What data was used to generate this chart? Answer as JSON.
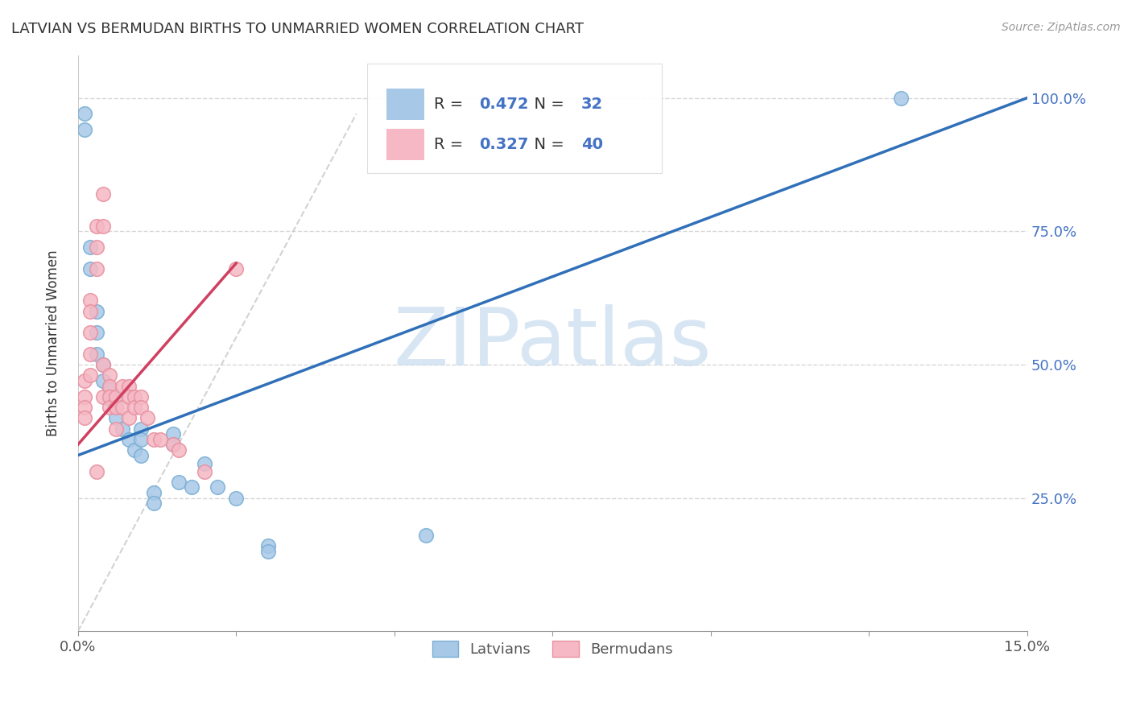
{
  "title": "LATVIAN VS BERMUDAN BIRTHS TO UNMARRIED WOMEN CORRELATION CHART",
  "source": "Source: ZipAtlas.com",
  "ylabel": "Births to Unmarried Women",
  "xlim": [
    0.0,
    0.15
  ],
  "ylim": [
    0.0,
    1.08
  ],
  "xticks": [
    0.0,
    0.025,
    0.05,
    0.075,
    0.1,
    0.125,
    0.15
  ],
  "xticklabels": [
    "0.0%",
    "",
    "",
    "",
    "",
    "",
    "15.0%"
  ],
  "yticks": [
    0.0,
    0.25,
    0.5,
    0.75,
    1.0
  ],
  "yticklabels_right": [
    "",
    "25.0%",
    "50.0%",
    "75.0%",
    "100.0%"
  ],
  "latvian_R": 0.472,
  "latvian_N": 32,
  "bermudan_R": 0.327,
  "bermudan_N": 40,
  "latvian_color": "#a8c8e8",
  "bermudan_color": "#f5b8c4",
  "latvian_edge_color": "#7aafd4",
  "bermudan_edge_color": "#e890a0",
  "latvian_line_color": "#3070b8",
  "bermudan_line_color": "#d04060",
  "ref_line_color": "#c0c0c0",
  "watermark_color": "#c8dcf0",
  "label_color": "#4472c4",
  "latvian_x": [
    0.001,
    0.001,
    0.002,
    0.002,
    0.003,
    0.003,
    0.003,
    0.004,
    0.004,
    0.005,
    0.0055,
    0.006,
    0.006,
    0.007,
    0.008,
    0.009,
    0.01,
    0.01,
    0.01,
    0.012,
    0.012,
    0.015,
    0.015,
    0.016,
    0.018,
    0.02,
    0.022,
    0.025,
    0.03,
    0.03,
    0.055,
    0.13
  ],
  "latvian_y": [
    0.97,
    0.94,
    0.72,
    0.68,
    0.6,
    0.56,
    0.52,
    0.5,
    0.47,
    0.455,
    0.43,
    0.44,
    0.4,
    0.38,
    0.36,
    0.34,
    0.38,
    0.36,
    0.33,
    0.26,
    0.24,
    0.37,
    0.35,
    0.28,
    0.27,
    0.315,
    0.27,
    0.25,
    0.16,
    0.15,
    0.18,
    1.0
  ],
  "bermudan_x": [
    0.001,
    0.001,
    0.001,
    0.001,
    0.002,
    0.002,
    0.002,
    0.002,
    0.002,
    0.003,
    0.003,
    0.003,
    0.003,
    0.004,
    0.004,
    0.004,
    0.004,
    0.005,
    0.005,
    0.005,
    0.005,
    0.006,
    0.006,
    0.006,
    0.007,
    0.007,
    0.008,
    0.008,
    0.008,
    0.009,
    0.009,
    0.01,
    0.01,
    0.011,
    0.012,
    0.013,
    0.015,
    0.016,
    0.02,
    0.025
  ],
  "bermudan_y": [
    0.47,
    0.44,
    0.42,
    0.4,
    0.62,
    0.6,
    0.56,
    0.52,
    0.48,
    0.76,
    0.72,
    0.68,
    0.3,
    0.82,
    0.76,
    0.5,
    0.44,
    0.48,
    0.46,
    0.44,
    0.42,
    0.44,
    0.42,
    0.38,
    0.46,
    0.42,
    0.46,
    0.44,
    0.4,
    0.44,
    0.42,
    0.44,
    0.42,
    0.4,
    0.36,
    0.36,
    0.35,
    0.34,
    0.3,
    0.68
  ],
  "blue_line_x0": 0.0,
  "blue_line_y0": 0.33,
  "blue_line_x1": 0.15,
  "blue_line_y1": 1.0,
  "pink_line_x0": 0.0,
  "pink_line_y0": 0.35,
  "pink_line_x1": 0.025,
  "pink_line_y1": 0.69,
  "ref_line_x0": 0.0,
  "ref_line_y0": 0.0,
  "ref_line_x1": 0.044,
  "ref_line_y1": 0.97
}
